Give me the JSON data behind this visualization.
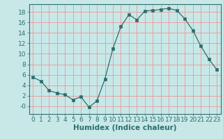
{
  "x": [
    0,
    1,
    2,
    3,
    4,
    5,
    6,
    7,
    8,
    9,
    10,
    11,
    12,
    13,
    14,
    15,
    16,
    17,
    18,
    19,
    20,
    21,
    22,
    23
  ],
  "y": [
    5.5,
    4.8,
    3.0,
    2.5,
    2.2,
    1.2,
    1.8,
    -0.2,
    1.0,
    5.2,
    11.0,
    15.2,
    17.5,
    16.5,
    18.2,
    18.3,
    18.5,
    18.7,
    18.3,
    16.7,
    14.5,
    11.5,
    9.0,
    7.0
  ],
  "line_color": "#2d6e6e",
  "marker": "s",
  "marker_size": 2.5,
  "bg_color": "#c8e8e8",
  "grid_color": "#e8a0a0",
  "xlabel": "Humidex (Indice chaleur)",
  "xlim": [
    -0.5,
    23.5
  ],
  "ylim": [
    -1.5,
    19.5
  ],
  "yticks": [
    0,
    2,
    4,
    6,
    8,
    10,
    12,
    14,
    16,
    18
  ],
  "ytick_labels": [
    "-0",
    "2",
    "4",
    "6",
    "8",
    "10",
    "12",
    "14",
    "16",
    "18"
  ],
  "xticks": [
    0,
    1,
    2,
    3,
    4,
    5,
    6,
    7,
    8,
    9,
    10,
    11,
    12,
    13,
    14,
    15,
    16,
    17,
    18,
    19,
    20,
    21,
    22,
    23
  ],
  "font_size": 6.5
}
